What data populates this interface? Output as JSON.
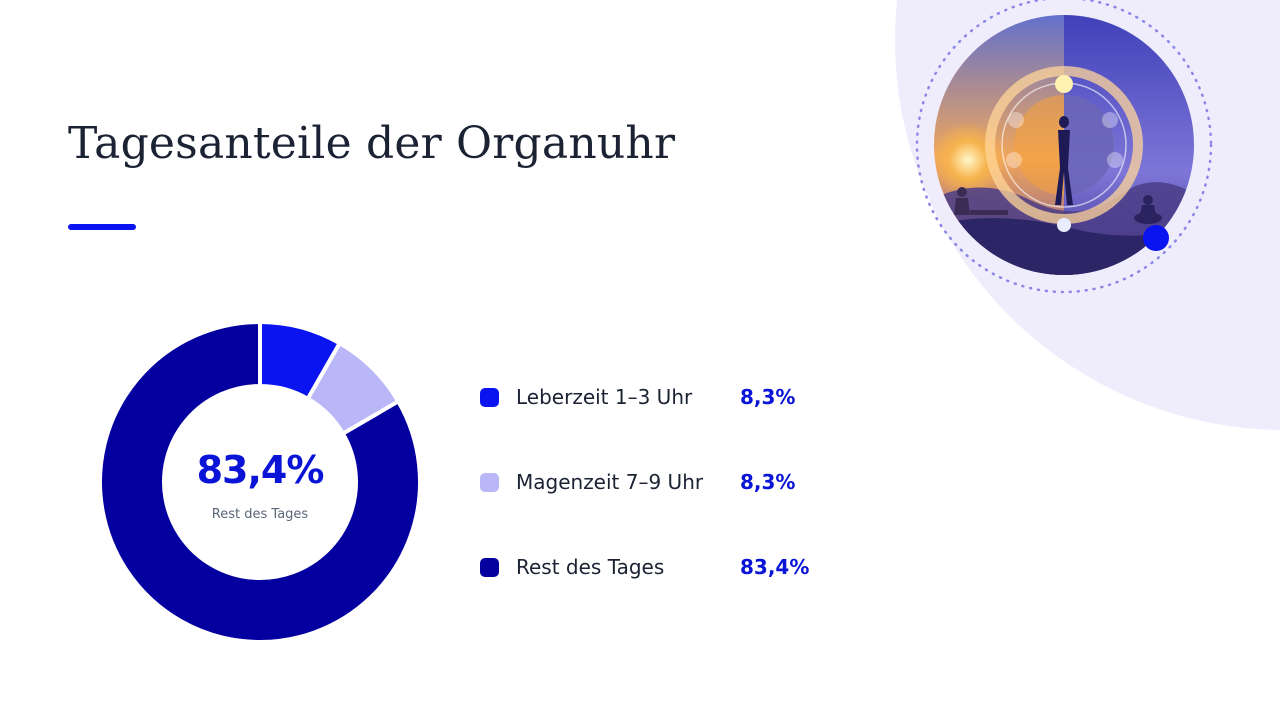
{
  "slide": {
    "title": "Tagesanteile der Organuhr",
    "accent_color": "#0a14f0"
  },
  "image": {
    "icon": "organ-clock-illustration"
  },
  "chart_data": {
    "type": "pie",
    "style": "donut",
    "categories": [
      "Leberzeit 1–3 Uhr",
      "Magenzeit 7–9 Uhr",
      "Rest des Tages"
    ],
    "values": [
      8.3,
      8.3,
      83.4
    ],
    "value_labels": [
      "8,3%",
      "8,3%",
      "83,4%"
    ],
    "colors": [
      "#0a14f0",
      "#b9b7f8",
      "#0400a0"
    ],
    "center_value": "83,4%",
    "center_label": "Rest des Tages",
    "legend_position": "right"
  }
}
